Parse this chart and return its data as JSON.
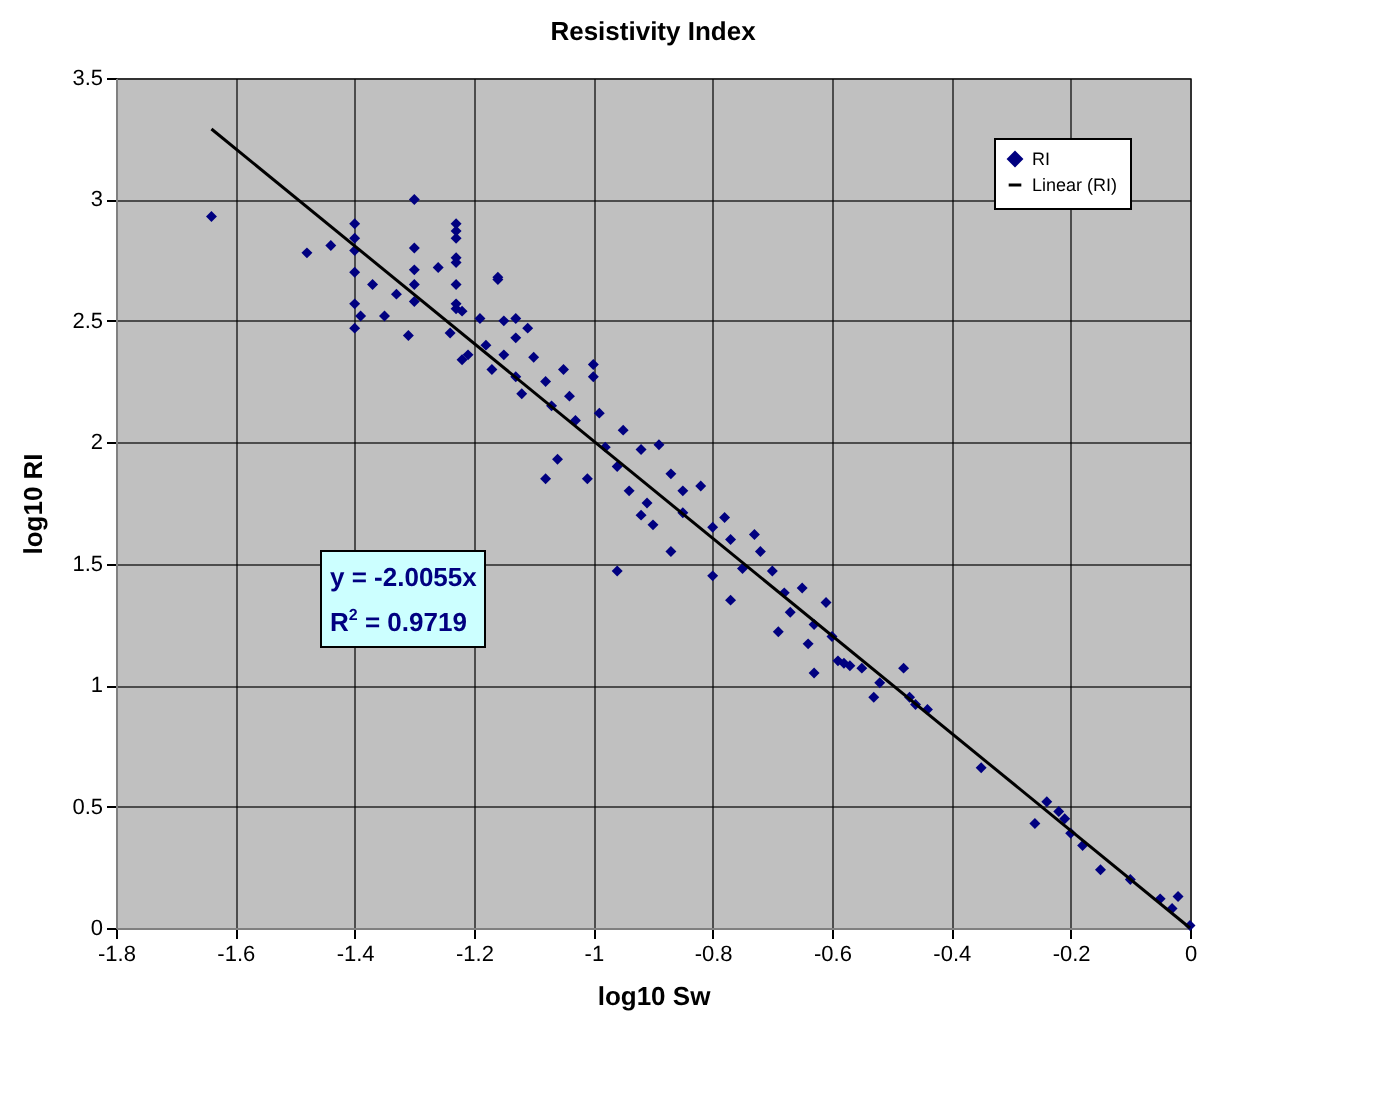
{
  "chart_data": {
    "type": "scatter",
    "title": "Resistivity Index",
    "xlabel": "log10 Sw",
    "ylabel": "log10 RI",
    "xlim": [
      -1.8,
      0
    ],
    "xticks": [
      -1.8,
      -1.6,
      -1.4,
      -1.2,
      -1,
      -0.8,
      -0.6,
      -0.4,
      -0.2,
      0
    ],
    "ylim": [
      0,
      3.5
    ],
    "yticks": [
      0,
      0.5,
      1,
      1.5,
      2,
      2.5,
      3,
      3.5
    ],
    "grid": true,
    "legend": "top right",
    "annotations": [
      "y = -2.0055x",
      "R$^{2}$ = 0.9719"
    ],
    "series": [
      {
        "name": "RI",
        "color": "#000080",
        "marker": "diamond",
        "x": [
          -1.64,
          -1.48,
          -1.44,
          -1.4,
          -1.4,
          -1.4,
          -1.4,
          -1.4,
          -1.39,
          -1.4,
          -1.37,
          -1.35,
          -1.33,
          -1.3,
          -1.3,
          -1.3,
          -1.3,
          -1.3,
          -1.31,
          -1.26,
          -1.23,
          -1.23,
          -1.23,
          -1.23,
          -1.23,
          -1.23,
          -1.23,
          -1.23,
          -1.22,
          -1.24,
          -1.22,
          -1.21,
          -1.19,
          -1.18,
          -1.17,
          -1.16,
          -1.16,
          -1.15,
          -1.15,
          -1.13,
          -1.13,
          -1.13,
          -1.12,
          -1.11,
          -1.1,
          -1.08,
          -1.07,
          -1.05,
          -1.04,
          -1.03,
          -1,
          -1,
          -0.99,
          -0.98,
          -0.96,
          -0.95,
          -0.94,
          -0.92,
          -0.91,
          -0.9,
          -0.89,
          -0.87,
          -0.85,
          -0.85,
          -0.82,
          -0.8,
          -0.78,
          -0.77,
          -0.75,
          -0.73,
          -0.72,
          -0.7,
          -0.68,
          -0.67,
          -0.65,
          -0.63,
          -0.61,
          -0.6,
          -0.59,
          -0.57,
          -0.55,
          -0.52,
          -0.48,
          -0.46,
          -0.44,
          -0.35,
          -0.26,
          -0.24,
          -0.22,
          -0.21,
          -0.2,
          -0.18,
          -0.15,
          -0.1,
          -0.05,
          -0.03,
          -0.02,
          0,
          -1.06,
          -1.08,
          -1.01,
          -0.96,
          -0.92,
          -0.87,
          -0.8,
          -0.77,
          -0.69,
          -0.64,
          -0.63,
          -0.58,
          -0.53,
          -0.47
        ],
        "values": [
          2.93,
          2.78,
          2.81,
          2.9,
          2.84,
          2.79,
          2.7,
          2.57,
          2.52,
          2.47,
          2.65,
          2.52,
          2.61,
          3.0,
          2.8,
          2.71,
          2.65,
          2.58,
          2.44,
          2.72,
          2.9,
          2.87,
          2.84,
          2.76,
          2.74,
          2.65,
          2.57,
          2.55,
          2.54,
          2.45,
          2.34,
          2.36,
          2.51,
          2.4,
          2.3,
          2.68,
          2.67,
          2.5,
          2.36,
          2.51,
          2.43,
          2.27,
          2.2,
          2.47,
          2.35,
          2.25,
          2.15,
          2.3,
          2.19,
          2.09,
          2.32,
          2.27,
          2.12,
          1.98,
          1.9,
          2.05,
          1.8,
          1.97,
          1.75,
          1.66,
          1.99,
          1.87,
          1.8,
          1.71,
          1.82,
          1.65,
          1.69,
          1.6,
          1.48,
          1.62,
          1.55,
          1.47,
          1.38,
          1.3,
          1.4,
          1.25,
          1.34,
          1.2,
          1.1,
          1.08,
          1.07,
          1.01,
          1.07,
          0.92,
          0.9,
          0.66,
          0.43,
          0.52,
          0.48,
          0.45,
          0.39,
          0.34,
          0.24,
          0.2,
          0.12,
          0.08,
          0.13,
          0.01,
          1.93,
          1.85,
          1.85,
          1.47,
          1.7,
          1.55,
          1.45,
          1.35,
          1.22,
          1.17,
          1.05,
          1.09,
          0.95,
          0.95
        ]
      },
      {
        "name": "Linear (RI)",
        "color": "#000000",
        "type": "line",
        "marker": "none",
        "x": [
          -1.64,
          0
        ],
        "values": [
          3.29,
          0
        ]
      }
    ]
  }
}
